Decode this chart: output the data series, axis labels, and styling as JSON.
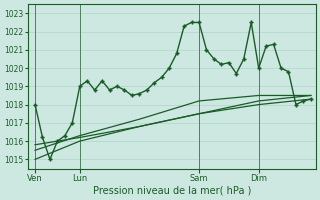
{
  "xlabel": "Pression niveau de la mer( hPa )",
  "bg_color": "#cde8e0",
  "grid_color": "#b0d4cc",
  "line_color": "#1a5c28",
  "ylim": [
    1014.5,
    1023.5
  ],
  "yticks": [
    1015,
    1016,
    1017,
    1018,
    1019,
    1020,
    1021,
    1022,
    1023
  ],
  "xtick_labels": [
    "Ven",
    "Lun",
    "Sam",
    "Dim"
  ],
  "xtick_positions": [
    2,
    20,
    68,
    92
  ],
  "vline_positions": [
    2,
    20,
    68,
    92
  ],
  "xlim": [
    -1,
    115
  ],
  "series": [
    {
      "x": [
        2,
        5,
        8,
        11,
        14,
        17,
        20,
        23,
        26,
        29,
        32,
        35,
        38,
        41,
        44,
        47,
        50,
        53,
        56,
        59,
        62,
        65,
        68,
        71,
        74,
        77,
        80,
        83,
        86,
        89,
        92,
        95,
        98,
        101,
        104,
        107,
        110,
        113
      ],
      "y": [
        1018.0,
        1016.2,
        1015.0,
        1016.0,
        1016.3,
        1017.0,
        1019.0,
        1019.3,
        1018.8,
        1019.3,
        1018.8,
        1019.0,
        1018.8,
        1018.5,
        1018.6,
        1018.8,
        1019.2,
        1019.5,
        1020.0,
        1020.8,
        1022.3,
        1022.5,
        1022.5,
        1021.0,
        1020.5,
        1020.2,
        1020.3,
        1019.7,
        1020.5,
        1022.5,
        1020.0,
        1021.2,
        1021.3,
        1020.0,
        1019.8,
        1018.0,
        1018.2,
        1018.3
      ],
      "marker": "P",
      "markersize": 2.5,
      "linewidth": 1.0
    },
    {
      "x": [
        2,
        20,
        44,
        68,
        92,
        113
      ],
      "y": [
        1015.5,
        1016.3,
        1017.2,
        1018.2,
        1018.5,
        1018.5
      ],
      "marker": null,
      "markersize": 0,
      "linewidth": 0.9
    },
    {
      "x": [
        2,
        20,
        44,
        68,
        92,
        113
      ],
      "y": [
        1015.0,
        1016.0,
        1016.8,
        1017.5,
        1018.2,
        1018.5
      ],
      "marker": null,
      "markersize": 0,
      "linewidth": 0.9
    },
    {
      "x": [
        2,
        20,
        44,
        68,
        92,
        113
      ],
      "y": [
        1015.8,
        1016.2,
        1016.8,
        1017.5,
        1018.0,
        1018.3
      ],
      "marker": null,
      "markersize": 0,
      "linewidth": 0.9
    }
  ]
}
